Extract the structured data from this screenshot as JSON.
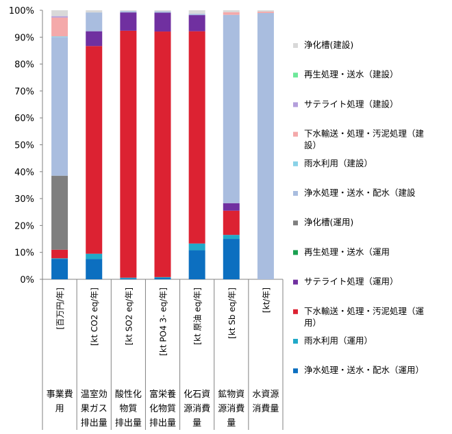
{
  "chart_data": {
    "type": "bar",
    "stacked": true,
    "normalized": true,
    "ylim": [
      0,
      100
    ],
    "yticks": [
      "0%",
      "10%",
      "20%",
      "30%",
      "40%",
      "50%",
      "60%",
      "70%",
      "80%",
      "90%",
      "100%"
    ],
    "legend_position": "right",
    "categories": [
      {
        "unit": "[百万円/年]",
        "label": [
          "事業費",
          "用"
        ]
      },
      {
        "unit": "[kt CO2 eq/年]",
        "label": [
          "温室効",
          "果ガス",
          "排出量"
        ]
      },
      {
        "unit": "[kt SO2 eq/年]",
        "label": [
          "酸性化",
          "物質",
          "排出量"
        ]
      },
      {
        "unit": "[kt PO4 3- eq/年]",
        "label": [
          "富栄養",
          "化物質",
          "排出量"
        ]
      },
      {
        "unit": "[kt 原油 eq/年]",
        "label": [
          "化石資",
          "源消費",
          "量"
        ]
      },
      {
        "unit": "[kt Sb eq/年]",
        "label": [
          "鉱物資",
          "源消費",
          "量"
        ]
      },
      {
        "unit": "[kt/年]",
        "label": [
          "水資源",
          "消費量"
        ]
      }
    ],
    "series": [
      {
        "name": "浄水処理・送水・配水（運用）",
        "color": "#0c6fc0",
        "values": [
          7.5,
          7.5,
          0.3,
          0.5,
          10.8,
          15.0,
          0
        ]
      },
      {
        "name": "雨水利用（運用）",
        "color": "#21a9c8",
        "values": [
          0.3,
          2.0,
          0.3,
          0.3,
          2.5,
          1.5,
          0
        ]
      },
      {
        "name": "下水輸送・処理・汚泥処理（運用）",
        "color": "#dc2232",
        "values": [
          3.2,
          77.2,
          91.8,
          91.3,
          78.9,
          9.0,
          0
        ]
      },
      {
        "name": "サテライト処理（運用）",
        "color": "#7030a0",
        "values": [
          0,
          5.5,
          6.8,
          7.0,
          6.0,
          2.8,
          0
        ]
      },
      {
        "name": "再生処理・送水（運用）",
        "color": "#1aa050",
        "values": [
          0,
          0,
          0,
          0,
          0,
          0,
          0
        ]
      },
      {
        "name": "浄化槽(運用)",
        "color": "#7f7f7f",
        "values": [
          27.5,
          0,
          0,
          0,
          0,
          0,
          0
        ]
      },
      {
        "name": "浄水処理・送水・配水（建設",
        "color": "#a9bddf",
        "values": [
          51.5,
          7.0,
          0.5,
          0.5,
          0.5,
          70.0,
          99.0
        ]
      },
      {
        "name": "雨水利用（建設）",
        "color": "#8ad2e7",
        "values": [
          0.3,
          0,
          0,
          0,
          0,
          0,
          0
        ]
      },
      {
        "name": "下水輸送・処理・汚泥処理（建設）",
        "color": "#f4a9aa",
        "values": [
          7.0,
          0,
          0,
          0,
          0,
          1.0,
          0.5
        ]
      },
      {
        "name": "サテライト処理（建設）",
        "color": "#b49fdc",
        "values": [
          0.5,
          0,
          0,
          0,
          0,
          0,
          0
        ]
      },
      {
        "name": "再生処理・送水（建設）",
        "color": "#6ee89a",
        "values": [
          0,
          0,
          0,
          0,
          0,
          0,
          0
        ]
      },
      {
        "name": "浄化槽(建設)",
        "color": "#d9d9d9",
        "values": [
          2.2,
          0.8,
          0.3,
          0.4,
          1.3,
          0.7,
          0.5
        ]
      }
    ],
    "legend": [
      {
        "text": [
          "浄化槽(建設)"
        ],
        "color": "#d9d9d9"
      },
      {
        "text": [
          "再生処理・送水（建設）"
        ],
        "color": "#6ee89a"
      },
      {
        "text": [
          "サテライト処理（建設）"
        ],
        "color": "#b49fdc"
      },
      {
        "text": [
          "下水輸送・処理・汚泥処理（建",
          "設）"
        ],
        "color": "#f4a9aa"
      },
      {
        "text": [
          "雨水利用（建設）"
        ],
        "color": "#8ad2e7"
      },
      {
        "text": [
          "浄水処理・送水・配水（建設"
        ],
        "color": "#a9bddf"
      },
      {
        "text": [
          "浄化槽(運用)"
        ],
        "color": "#7f7f7f"
      },
      {
        "text": [
          "再生処理・送水（運用"
        ],
        "color": "#1aa050"
      },
      {
        "text": [
          "サテライト処理（運用）"
        ],
        "color": "#7030a0"
      },
      {
        "text": [
          "下水輸送・処理・汚泥処理（運",
          "用）"
        ],
        "color": "#dc2232"
      },
      {
        "text": [
          "雨水利用（運用）"
        ],
        "color": "#21a9c8"
      },
      {
        "text": [
          "浄水処理・送水・配水（運用）"
        ],
        "color": "#0c6fc0"
      }
    ]
  }
}
